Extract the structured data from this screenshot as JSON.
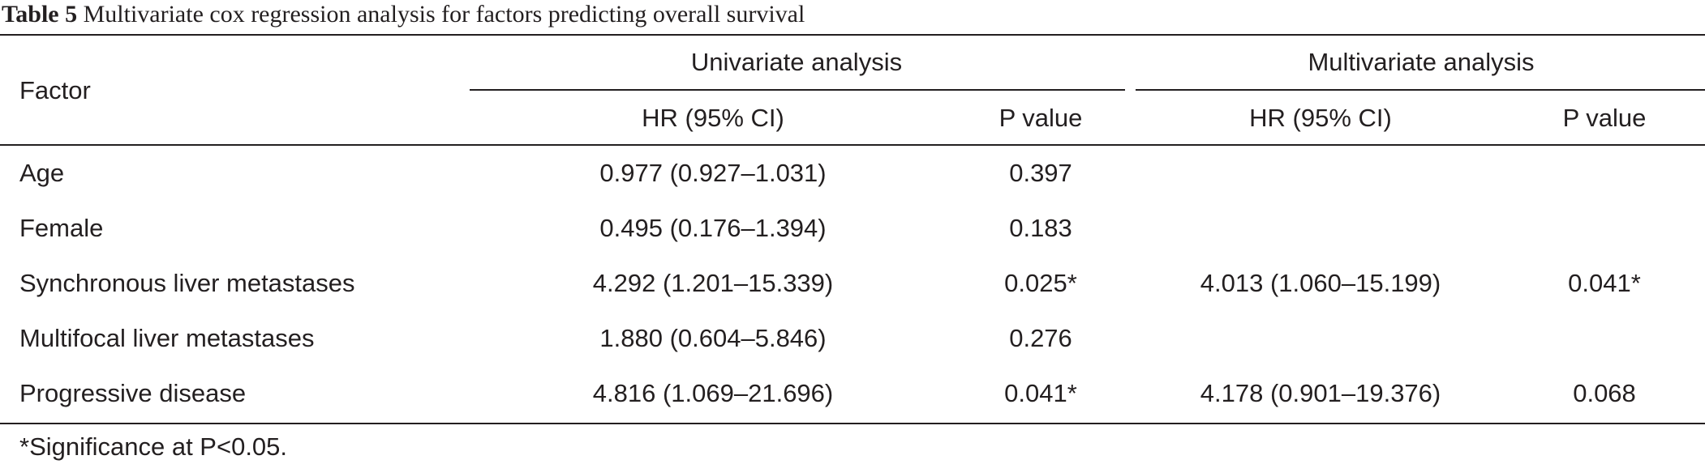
{
  "caption": {
    "label": "Table 5",
    "text": "Multivariate cox regression analysis for factors predicting overall survival"
  },
  "header": {
    "factor": "Factor",
    "univariate": "Univariate analysis",
    "multivariate": "Multivariate analysis",
    "uni_hr": "HR (95% CI)",
    "uni_p": "P value",
    "multi_hr": "HR (95% CI)",
    "multi_p": "P value"
  },
  "rows": [
    {
      "factor": "Age",
      "uni_hr": "0.977 (0.927–1.031)",
      "uni_p": "0.397",
      "multi_hr": "",
      "multi_p": ""
    },
    {
      "factor": "Female",
      "uni_hr": "0.495 (0.176–1.394)",
      "uni_p": "0.183",
      "multi_hr": "",
      "multi_p": ""
    },
    {
      "factor": "Synchronous liver metastases",
      "uni_hr": "4.292 (1.201–15.339)",
      "uni_p": "0.025*",
      "multi_hr": "4.013 (1.060–15.199)",
      "multi_p": "0.041*"
    },
    {
      "factor": "Multifocal liver metastases",
      "uni_hr": "1.880 (0.604–5.846)",
      "uni_p": "0.276",
      "multi_hr": "",
      "multi_p": ""
    },
    {
      "factor": "Progressive disease",
      "uni_hr": "4.816 (1.069–21.696)",
      "uni_p": "0.041*",
      "multi_hr": "4.178 (0.901–19.376)",
      "multi_p": "0.068"
    }
  ],
  "footnote": "*Significance at P<0.05."
}
